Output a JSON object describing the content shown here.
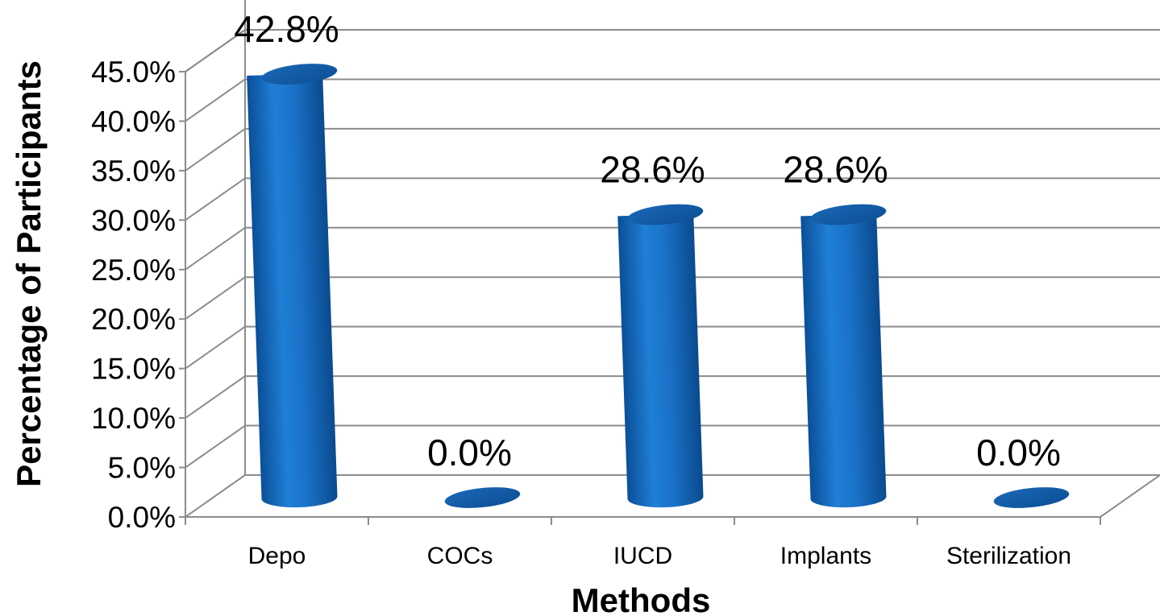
{
  "chart_data": {
    "type": "bar",
    "categories": [
      "Depo",
      "COCs",
      "IUCD",
      "Implants",
      "Sterilization"
    ],
    "values": [
      42.8,
      0.0,
      28.6,
      28.6,
      0.0
    ],
    "data_labels": [
      "42.8%",
      "0.0%",
      "28.6%",
      "28.6%",
      "0.0%"
    ],
    "ylim": [
      0,
      45
    ],
    "yticks": [
      "0.0%",
      "5.0%",
      "10.0%",
      "15.0%",
      "20.0%",
      "25.0%",
      "30.0%",
      "35.0%",
      "40.0%",
      "45.0%"
    ],
    "xlabel": "Methods",
    "ylabel": "Percentage of Participants",
    "grid": true,
    "legend": "none",
    "style": "3d-cylinder",
    "bar_color": "#1a6fc4"
  }
}
